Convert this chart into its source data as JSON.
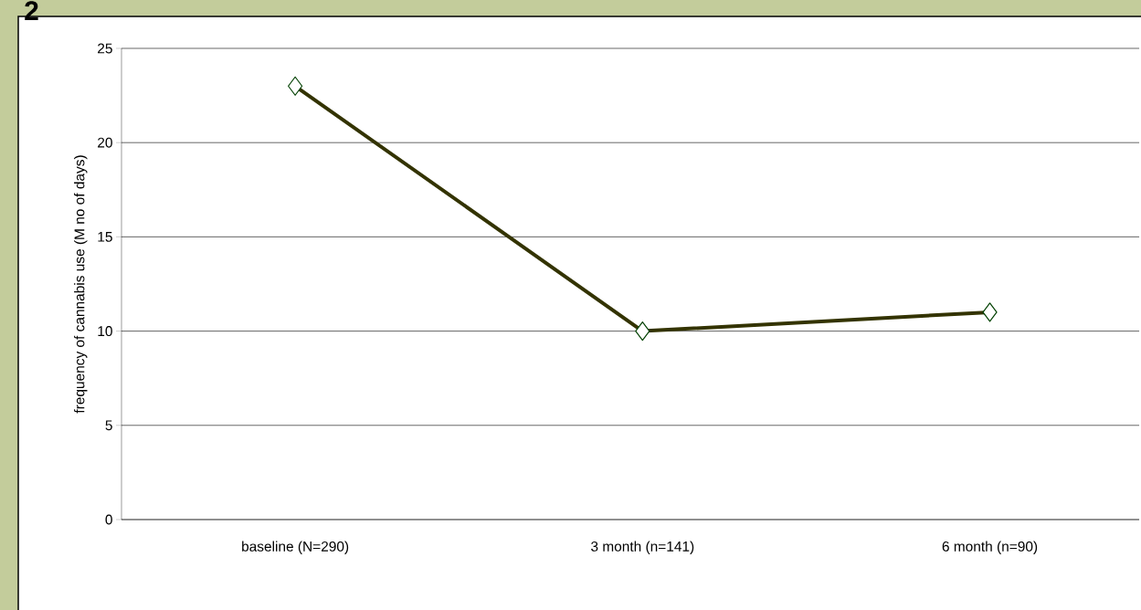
{
  "chart_data": {
    "type": "line",
    "ylabel": "frequency of cannabis use (M no of days)",
    "annotations": [
      "2"
    ],
    "categories": [
      "baseline (N=290)",
      "3 month (n=141)",
      "6 month (n=90)"
    ],
    "series": [
      {
        "color": "#333300",
        "values": [
          23,
          10,
          11
        ]
      }
    ],
    "ylim": [
      0,
      25
    ],
    "yticks": [
      0,
      5,
      10,
      15,
      20,
      25
    ],
    "grid": "y",
    "marker": "diamond",
    "line_style": "solid"
  }
}
